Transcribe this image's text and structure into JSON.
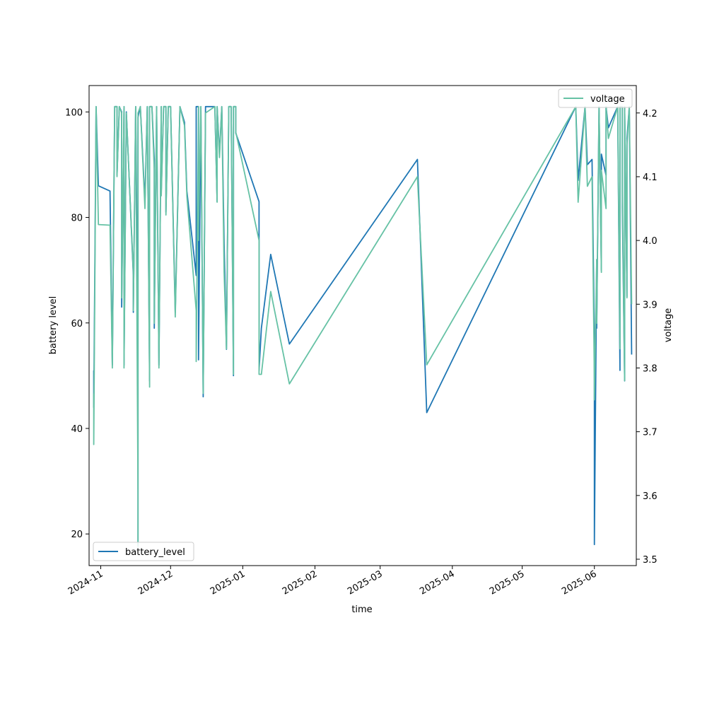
{
  "chart_data": {
    "type": "line",
    "xlabel": "time",
    "ylabel_left": "battery level",
    "ylabel_right": "voltage",
    "x_ticks": [
      "2024-11",
      "2024-12",
      "2025-01",
      "2025-02",
      "2025-03",
      "2025-04",
      "2025-05",
      "2025-06"
    ],
    "x_range": [
      "2024-10-27",
      "2025-06-19"
    ],
    "y_left_ticks": [
      20,
      40,
      60,
      80,
      100
    ],
    "y_left_range": [
      14,
      105
    ],
    "y_right_ticks": [
      3.5,
      3.6,
      3.7,
      3.8,
      3.9,
      4.0,
      4.1,
      4.2
    ],
    "y_right_range": [
      3.49,
      4.243
    ],
    "grid": false,
    "legend_left": {
      "label": "battery_level",
      "position": "lower-left"
    },
    "legend_right": {
      "label": "voltage",
      "position": "upper-right"
    },
    "colors": {
      "battery_level": "#1f77b4",
      "voltage": "#66c2a5"
    },
    "series": [
      {
        "name": "battery_level",
        "axis": "left",
        "points": [
          [
            "2024-10-29",
            51
          ],
          [
            "2024-10-29",
            44
          ],
          [
            "2024-10-30",
            101
          ],
          [
            "2024-10-31",
            86
          ],
          [
            "2024-11-05",
            85
          ],
          [
            "2024-11-06",
            52
          ],
          [
            "2024-11-07",
            101
          ],
          [
            "2024-11-08",
            101
          ],
          [
            "2024-11-08",
            88
          ],
          [
            "2024-11-09",
            101
          ],
          [
            "2024-11-10",
            100
          ],
          [
            "2024-11-10",
            63
          ],
          [
            "2024-11-11",
            101
          ],
          [
            "2024-11-11",
            52
          ],
          [
            "2024-11-12",
            100
          ],
          [
            "2024-11-15",
            69
          ],
          [
            "2024-11-15",
            62
          ],
          [
            "2024-11-16",
            101
          ],
          [
            "2024-11-17",
            55
          ],
          [
            "2024-11-17",
            18
          ],
          [
            "2024-11-17",
            99
          ],
          [
            "2024-11-18",
            101
          ],
          [
            "2024-11-20",
            83
          ],
          [
            "2024-11-21",
            101
          ],
          [
            "2024-11-22",
            49
          ],
          [
            "2024-11-22",
            101
          ],
          [
            "2024-11-23",
            101
          ],
          [
            "2024-11-24",
            91
          ],
          [
            "2024-11-24",
            59
          ],
          [
            "2024-11-25",
            101
          ],
          [
            "2024-11-26",
            52
          ],
          [
            "2024-11-27",
            101
          ],
          [
            "2024-11-27",
            85
          ],
          [
            "2024-11-28",
            101
          ],
          [
            "2024-11-29",
            101
          ],
          [
            "2024-11-29",
            81
          ],
          [
            "2024-11-30",
            101
          ],
          [
            "2024-12-01",
            101
          ],
          [
            "2024-12-03",
            62
          ],
          [
            "2024-12-05",
            101
          ],
          [
            "2024-12-07",
            98
          ],
          [
            "2024-12-08",
            85
          ],
          [
            "2024-12-12",
            69
          ],
          [
            "2024-12-12",
            101
          ],
          [
            "2024-12-13",
            101
          ],
          [
            "2024-12-13",
            78
          ],
          [
            "2024-12-13",
            53
          ],
          [
            "2024-12-14",
            101
          ],
          [
            "2024-12-15",
            46
          ],
          [
            "2024-12-16",
            101
          ],
          [
            "2024-12-20",
            101
          ],
          [
            "2024-12-21",
            83
          ],
          [
            "2024-12-21",
            101
          ],
          [
            "2024-12-22",
            92
          ],
          [
            "2024-12-23",
            101
          ],
          [
            "2024-12-24",
            75
          ],
          [
            "2024-12-25",
            55
          ],
          [
            "2024-12-26",
            101
          ],
          [
            "2024-12-27",
            101
          ],
          [
            "2024-12-28",
            50
          ],
          [
            "2024-12-28",
            101
          ],
          [
            "2024-12-29",
            101
          ],
          [
            "2024-12-29",
            96
          ],
          [
            "2025-01-08",
            83
          ],
          [
            "2025-01-08",
            51
          ],
          [
            "2025-01-09",
            59
          ],
          [
            "2025-01-13",
            73
          ],
          [
            "2025-01-21",
            56
          ],
          [
            "2025-03-17",
            91
          ],
          [
            "2025-03-21",
            43
          ],
          [
            "2025-05-24",
            101
          ],
          [
            "2025-05-25",
            87
          ],
          [
            "2025-05-28",
            101
          ],
          [
            "2025-05-29",
            90
          ],
          [
            "2025-05-31",
            91
          ],
          [
            "2025-06-01",
            57
          ],
          [
            "2025-06-01",
            18
          ],
          [
            "2025-06-02",
            72
          ],
          [
            "2025-06-02",
            59
          ],
          [
            "2025-06-03",
            101
          ],
          [
            "2025-06-04",
            70
          ],
          [
            "2025-06-04",
            92
          ],
          [
            "2025-06-06",
            88
          ],
          [
            "2025-06-06",
            101
          ],
          [
            "2025-06-07",
            97
          ],
          [
            "2025-06-11",
            101
          ],
          [
            "2025-06-12",
            51
          ],
          [
            "2025-06-12",
            101
          ],
          [
            "2025-06-13",
            101
          ],
          [
            "2025-06-13",
            82
          ],
          [
            "2025-06-14",
            49
          ],
          [
            "2025-06-14",
            101
          ],
          [
            "2025-06-15",
            65
          ],
          [
            "2025-06-15",
            95
          ],
          [
            "2025-06-16",
            101
          ],
          [
            "2025-06-17",
            54
          ]
        ]
      },
      {
        "name": "voltage",
        "axis": "right",
        "points": [
          [
            "2024-10-29",
            3.76
          ],
          [
            "2024-10-29",
            3.68
          ],
          [
            "2024-10-30",
            4.21
          ],
          [
            "2024-10-31",
            4.025
          ],
          [
            "2024-11-05",
            4.024
          ],
          [
            "2024-11-06",
            3.8
          ],
          [
            "2024-11-07",
            4.21
          ],
          [
            "2024-11-08",
            4.21
          ],
          [
            "2024-11-08",
            4.1
          ],
          [
            "2024-11-09",
            4.21
          ],
          [
            "2024-11-10",
            4.2
          ],
          [
            "2024-11-10",
            3.91
          ],
          [
            "2024-11-11",
            4.21
          ],
          [
            "2024-11-11",
            3.8
          ],
          [
            "2024-11-12",
            4.2
          ],
          [
            "2024-11-15",
            3.95
          ],
          [
            "2024-11-15",
            3.89
          ],
          [
            "2024-11-16",
            4.21
          ],
          [
            "2024-11-17",
            3.6
          ],
          [
            "2024-11-17",
            3.52
          ],
          [
            "2024-11-17",
            4.2
          ],
          [
            "2024-11-18",
            4.21
          ],
          [
            "2024-11-20",
            4.05
          ],
          [
            "2024-11-21",
            4.21
          ],
          [
            "2024-11-22",
            3.77
          ],
          [
            "2024-11-22",
            4.21
          ],
          [
            "2024-11-23",
            4.21
          ],
          [
            "2024-11-24",
            4.11
          ],
          [
            "2024-11-24",
            3.87
          ],
          [
            "2024-11-25",
            4.21
          ],
          [
            "2024-11-26",
            3.8
          ],
          [
            "2024-11-27",
            4.21
          ],
          [
            "2024-11-27",
            4.07
          ],
          [
            "2024-11-28",
            4.21
          ],
          [
            "2024-11-29",
            4.21
          ],
          [
            "2024-11-29",
            4.04
          ],
          [
            "2024-11-30",
            4.21
          ],
          [
            "2024-12-01",
            4.21
          ],
          [
            "2024-12-03",
            3.88
          ],
          [
            "2024-12-05",
            4.21
          ],
          [
            "2024-12-07",
            4.18
          ],
          [
            "2024-12-08",
            4.07
          ],
          [
            "2024-12-12",
            3.89
          ],
          [
            "2024-12-12",
            3.81
          ],
          [
            "2024-12-13",
            4.21
          ],
          [
            "2024-12-13",
            4.0
          ],
          [
            "2024-12-13",
            4.02
          ],
          [
            "2024-12-14",
            4.21
          ],
          [
            "2024-12-15",
            3.76
          ],
          [
            "2024-12-16",
            4.2
          ],
          [
            "2024-12-20",
            4.21
          ],
          [
            "2024-12-21",
            4.06
          ],
          [
            "2024-12-21",
            4.21
          ],
          [
            "2024-12-22",
            4.13
          ],
          [
            "2024-12-23",
            4.21
          ],
          [
            "2024-12-24",
            3.95
          ],
          [
            "2024-12-25",
            3.83
          ],
          [
            "2024-12-26",
            4.21
          ],
          [
            "2024-12-27",
            4.21
          ],
          [
            "2024-12-28",
            3.79
          ],
          [
            "2024-12-28",
            4.21
          ],
          [
            "2024-12-29",
            4.21
          ],
          [
            "2024-12-29",
            4.17
          ],
          [
            "2025-01-08",
            4.0
          ],
          [
            "2025-01-08",
            3.79
          ],
          [
            "2025-01-09",
            3.79
          ],
          [
            "2025-01-13",
            3.92
          ],
          [
            "2025-01-21",
            3.775
          ],
          [
            "2025-03-17",
            4.1
          ],
          [
            "2025-03-21",
            3.805
          ],
          [
            "2025-05-24",
            4.21
          ],
          [
            "2025-05-25",
            4.06
          ],
          [
            "2025-05-28",
            4.21
          ],
          [
            "2025-05-29",
            4.085
          ],
          [
            "2025-05-31",
            4.1
          ],
          [
            "2025-06-01",
            3.78
          ],
          [
            "2025-06-01",
            3.75
          ],
          [
            "2025-06-02",
            3.97
          ],
          [
            "2025-06-02",
            3.87
          ],
          [
            "2025-06-03",
            4.21
          ],
          [
            "2025-06-04",
            3.95
          ],
          [
            "2025-06-04",
            4.11
          ],
          [
            "2025-06-06",
            4.05
          ],
          [
            "2025-06-06",
            4.21
          ],
          [
            "2025-06-07",
            4.16
          ],
          [
            "2025-06-11",
            4.21
          ],
          [
            "2025-06-12",
            3.83
          ],
          [
            "2025-06-12",
            4.21
          ],
          [
            "2025-06-13",
            4.21
          ],
          [
            "2025-06-13",
            4.08
          ],
          [
            "2025-06-14",
            3.78
          ],
          [
            "2025-06-14",
            4.21
          ],
          [
            "2025-06-15",
            3.91
          ],
          [
            "2025-06-15",
            4.15
          ],
          [
            "2025-06-16",
            4.21
          ],
          [
            "2025-06-17",
            3.9
          ]
        ]
      }
    ]
  }
}
